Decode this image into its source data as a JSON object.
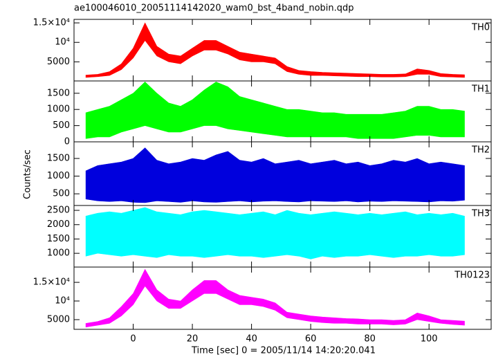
{
  "chart_data": {
    "type": "line",
    "title": "ae100046010_20051114142020_wam0_bst_4band_nobin.qdp",
    "xlabel": "Time [sec] 0 = 2005/11/14 14:20:20.041",
    "ylabel": "Counts/sec",
    "x": [
      -16,
      -12,
      -8,
      -4,
      0,
      4,
      8,
      12,
      16,
      20,
      24,
      28,
      32,
      36,
      40,
      44,
      48,
      52,
      56,
      60,
      64,
      68,
      72,
      76,
      80,
      84,
      88,
      92,
      96,
      100,
      104,
      108,
      112
    ],
    "xlim": [
      -20,
      121
    ],
    "xticks": [
      0,
      20,
      40,
      60,
      80,
      100
    ],
    "panels": [
      {
        "label": "TH0",
        "color": "#ff0000",
        "ylim": [
          100,
          15900
        ],
        "yticks": [
          5000,
          {
            "value": 10000,
            "label": "10⁴"
          },
          {
            "value": 15000,
            "label": "1.5×10⁴"
          }
        ],
        "low": [
          1000,
          1200,
          1500,
          3000,
          6000,
          10500,
          6500,
          5000,
          4500,
          6500,
          8000,
          8000,
          7000,
          5500,
          5000,
          5000,
          4500,
          2500,
          1800,
          1500,
          1500,
          1400,
          1300,
          1200,
          1200,
          1100,
          1100,
          1200,
          1800,
          1800,
          1200,
          1100,
          1000
        ],
        "high": [
          1600,
          1800,
          2500,
          4500,
          8500,
          15000,
          9000,
          7000,
          6500,
          8500,
          10500,
          10500,
          9000,
          7500,
          7000,
          6500,
          6000,
          3800,
          2800,
          2500,
          2300,
          2200,
          2100,
          2000,
          1900,
          1800,
          1800,
          1900,
          3200,
          2800,
          2000,
          1800,
          1700
        ]
      },
      {
        "label": "TH1",
        "color": "#00ff00",
        "ylim": [
          0,
          1880
        ],
        "yticks": [
          0,
          500,
          1000,
          1500
        ],
        "low": [
          100,
          150,
          150,
          300,
          400,
          500,
          400,
          300,
          300,
          400,
          500,
          500,
          400,
          350,
          300,
          250,
          200,
          150,
          150,
          150,
          150,
          150,
          150,
          100,
          100,
          100,
          100,
          150,
          200,
          200,
          150,
          150,
          150
        ],
        "high": [
          900,
          1000,
          1100,
          1300,
          1500,
          1850,
          1500,
          1200,
          1100,
          1300,
          1600,
          1850,
          1700,
          1400,
          1300,
          1200,
          1100,
          1000,
          1000,
          950,
          900,
          900,
          850,
          850,
          850,
          850,
          900,
          950,
          1100,
          1100,
          1000,
          1000,
          950
        ]
      },
      {
        "label": "TH2",
        "color": "#0000dd",
        "ylim": [
          170,
          1970
        ],
        "yticks": [
          500,
          1000,
          1500
        ],
        "low": [
          350,
          300,
          280,
          300,
          260,
          250,
          300,
          280,
          260,
          300,
          270,
          260,
          280,
          300,
          270,
          290,
          300,
          280,
          270,
          300,
          290,
          280,
          300,
          270,
          290,
          280,
          300,
          290,
          280,
          270,
          300,
          290,
          320
        ],
        "high": [
          1150,
          1300,
          1350,
          1400,
          1500,
          1800,
          1450,
          1350,
          1400,
          1500,
          1450,
          1600,
          1700,
          1450,
          1400,
          1500,
          1350,
          1400,
          1450,
          1350,
          1400,
          1450,
          1350,
          1400,
          1300,
          1350,
          1450,
          1400,
          1500,
          1350,
          1400,
          1350,
          1300
        ]
      },
      {
        "label": "TH3",
        "color": "#00ffff",
        "ylim": [
          520,
          2670
        ],
        "yticks": [
          1000,
          1500,
          2000,
          2500
        ],
        "low": [
          900,
          1000,
          950,
          900,
          950,
          900,
          850,
          950,
          900,
          900,
          850,
          900,
          950,
          900,
          900,
          850,
          900,
          950,
          900,
          800,
          900,
          850,
          900,
          900,
          950,
          900,
          850,
          900,
          900,
          950,
          900,
          900,
          950
        ],
        "high": [
          2300,
          2400,
          2450,
          2400,
          2500,
          2600,
          2450,
          2400,
          2350,
          2450,
          2500,
          2450,
          2400,
          2350,
          2400,
          2450,
          2350,
          2500,
          2400,
          2350,
          2400,
          2450,
          2400,
          2350,
          2400,
          2350,
          2400,
          2450,
          2350,
          2400,
          2350,
          2400,
          2300
        ]
      },
      {
        "label": "TH0123",
        "color": "#ff00ff",
        "ylim": [
          2400,
          19100
        ],
        "yticks": [
          5000,
          {
            "value": 10000,
            "label": "10⁴"
          },
          {
            "value": 15000,
            "label": "1.5×10⁴"
          }
        ],
        "low": [
          3000,
          3500,
          4000,
          6000,
          9000,
          14000,
          10000,
          8000,
          8000,
          10000,
          12000,
          12000,
          10500,
          9000,
          9000,
          8500,
          7500,
          5500,
          5000,
          4500,
          4200,
          4000,
          4000,
          3800,
          3800,
          3800,
          3600,
          3800,
          5000,
          4500,
          4000,
          3700,
          3500
        ],
        "high": [
          4000,
          4500,
          5500,
          8500,
          12000,
          18500,
          13000,
          10500,
          10000,
          13000,
          15500,
          15500,
          13000,
          11500,
          11000,
          10500,
          9500,
          7000,
          6500,
          6000,
          5700,
          5500,
          5300,
          5200,
          5000,
          5000,
          4800,
          5000,
          6800,
          6000,
          5000,
          4800,
          4600
        ]
      }
    ]
  }
}
